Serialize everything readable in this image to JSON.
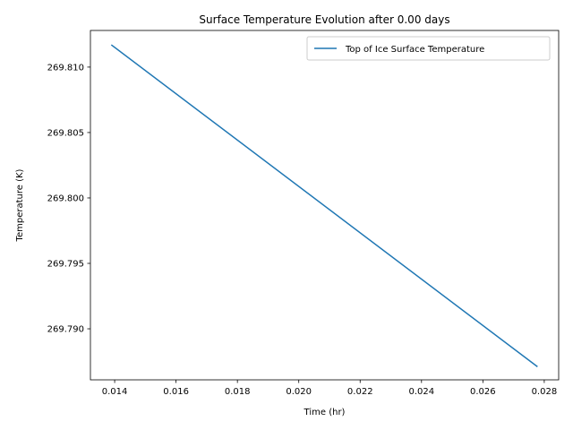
{
  "chart_data": {
    "type": "line",
    "title": "Surface Temperature Evolution after 0.00 days",
    "xlabel": "Time (hr)",
    "ylabel": "Temperature (K)",
    "xlim": [
      0.01321,
      0.02847
    ],
    "ylim": [
      269.7861,
      269.8128
    ],
    "xticks": [
      0.014,
      0.016,
      0.018,
      0.02,
      0.022,
      0.024,
      0.026,
      0.028
    ],
    "xtick_labels": [
      "0.014",
      "0.016",
      "0.018",
      "0.020",
      "0.022",
      "0.024",
      "0.026",
      "0.028"
    ],
    "yticks": [
      269.79,
      269.795,
      269.8,
      269.805,
      269.81
    ],
    "ytick_labels": [
      "269.790",
      "269.795",
      "269.800",
      "269.805",
      "269.810"
    ],
    "grid": false,
    "legend_position": "upper right",
    "series": [
      {
        "name": "Top of Ice Surface Temperature",
        "color": "#1f77b4",
        "x": [
          0.01389,
          0.02778
        ],
        "y": [
          269.8117,
          269.7871
        ]
      }
    ]
  }
}
